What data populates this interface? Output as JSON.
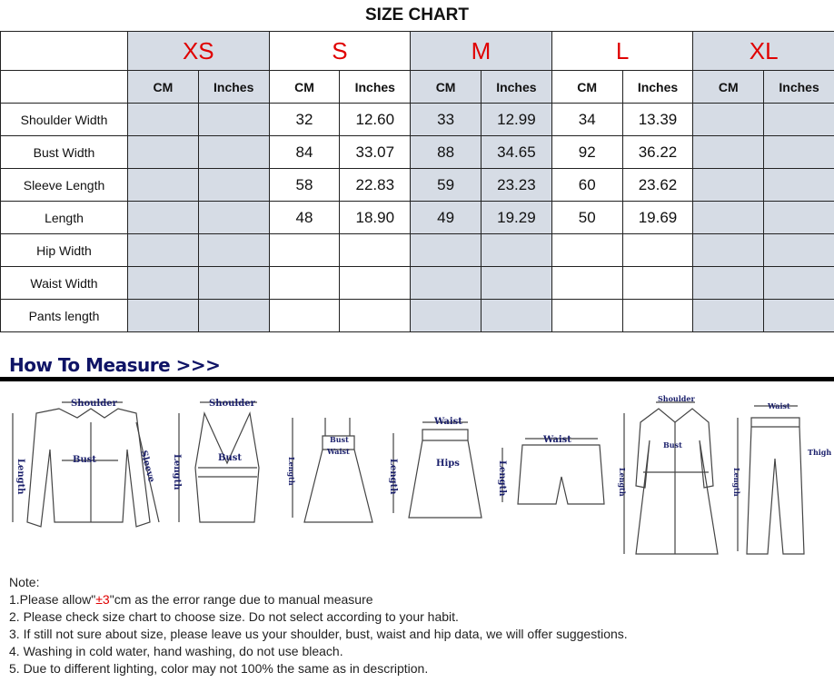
{
  "title": "SIZE CHART",
  "sizes": [
    "XS",
    "S",
    "M",
    "L",
    "XL"
  ],
  "units": [
    "CM",
    "Inches"
  ],
  "rows": [
    {
      "label": "Shoulder Width",
      "values": [
        "",
        "",
        "32",
        "12.60",
        "33",
        "12.99",
        "34",
        "13.39",
        "",
        ""
      ]
    },
    {
      "label": "Bust Width",
      "values": [
        "",
        "",
        "84",
        "33.07",
        "88",
        "34.65",
        "92",
        "36.22",
        "",
        ""
      ]
    },
    {
      "label": "Sleeve Length",
      "values": [
        "",
        "",
        "58",
        "22.83",
        "59",
        "23.23",
        "60",
        "23.62",
        "",
        ""
      ]
    },
    {
      "label": "Length",
      "values": [
        "",
        "",
        "48",
        "18.90",
        "49",
        "19.29",
        "50",
        "19.69",
        "",
        ""
      ]
    },
    {
      "label": "Hip Width",
      "values": [
        "",
        "",
        "",
        "",
        "",
        "",
        "",
        "",
        "",
        ""
      ]
    },
    {
      "label": "Waist Width",
      "values": [
        "",
        "",
        "",
        "",
        "",
        "",
        "",
        "",
        "",
        ""
      ]
    },
    {
      "label": "Pants length",
      "values": [
        "",
        "",
        "",
        "",
        "",
        "",
        "",
        "",
        "",
        ""
      ]
    }
  ],
  "how_to_measure": "How To Measure >>>",
  "diagram_labels": {
    "shoulder": "Shoulder",
    "bust": "Bust",
    "sleeve": "Sleeve",
    "length": "Length",
    "waist": "Waist",
    "hips": "Hips",
    "thigh": "Thigh"
  },
  "notes": {
    "heading": "Note:",
    "n1_pre": "1.Please allow\"",
    "n1_red": "±3",
    "n1_post": "\"cm as the error range due to manual measure",
    "n2": "2. Please check size chart to choose size. Do not select according to your habit.",
    "n3": "3. If still not sure about size, please leave us your shoulder, bust, waist and hip data, we will offer suggestions.",
    "n4": "4. Washing in cold water, hand washing, do not use bleach.",
    "n5": "5. Due to different lighting, color may not 100% the same as in description."
  },
  "colors": {
    "size_label": "#e00000",
    "shaded_column": "#d6dce5",
    "diagram_text": "#1a1f6b"
  }
}
